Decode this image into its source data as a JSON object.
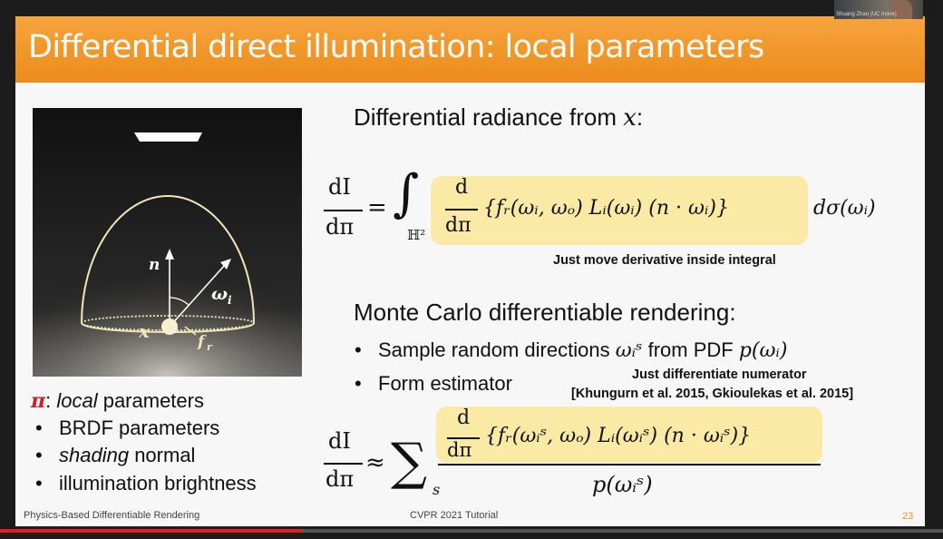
{
  "slide": {
    "title": "Differential direct illumination: local parameters",
    "page_number": "23",
    "footer_left": "Physics-Based Differentiable Rendering",
    "footer_center": "CVPR 2021 Tutorial"
  },
  "figure": {
    "label_n": "n",
    "label_omega": "ω",
    "label_omega_sub": "i",
    "label_x": "x",
    "label_f": "f",
    "label_f_sub": "r"
  },
  "radiance": {
    "heading_text": "Differential radiance from ",
    "heading_var": "x",
    "heading_colon": ":",
    "lhs_num": "dI",
    "lhs_den": "dπ",
    "equals": "=",
    "integral": "∫",
    "domain": "ℍ²",
    "inner_num": "d",
    "inner_den": "dπ",
    "inner_expr": "{fᵣ(ωᵢ, ωₒ) Lᵢ(ωᵢ) (n · ωᵢ)}",
    "measure": "dσ(ωᵢ)",
    "note": "Just move derivative inside integral"
  },
  "monte_carlo": {
    "heading": "Monte Carlo differentiable rendering:",
    "bullet1_text": "Sample random directions ",
    "bullet1_sym": "ωᵢˢ",
    "bullet1_mid": " from PDF ",
    "bullet1_pdf": "p(ωᵢ)",
    "bullet2": "Form estimator",
    "note1": "Just differentiate numerator",
    "note2": "[Khungurn et al. 2015, Gkioulekas et al. 2015]",
    "lhs_num": "dI",
    "lhs_den": "dπ",
    "approx": "≈",
    "sum": "∑",
    "sum_sub": "s",
    "inner_num": "d",
    "inner_den": "dπ",
    "numerator_expr": "{fᵣ(ωᵢˢ, ωₒ) Lᵢ(ωᵢˢ) (n · ωᵢˢ)}",
    "denominator": "p(ωᵢˢ)"
  },
  "params": {
    "pi": "π",
    "colon": ": ",
    "local": "local",
    "rest": " parameters",
    "item1": "BRDF parameters",
    "item2_em": "shading",
    "item2_rest": " normal",
    "item3": "illumination brightness",
    "bullet_char": "•"
  },
  "webcam": {
    "label": "Shuang Zhao (UC Irvine)"
  },
  "player": {
    "progress": 0.32
  },
  "colors": {
    "accent": "#ec8b1c",
    "highlight": "#fbe9a6",
    "pi_red": "#cc1f1f"
  }
}
